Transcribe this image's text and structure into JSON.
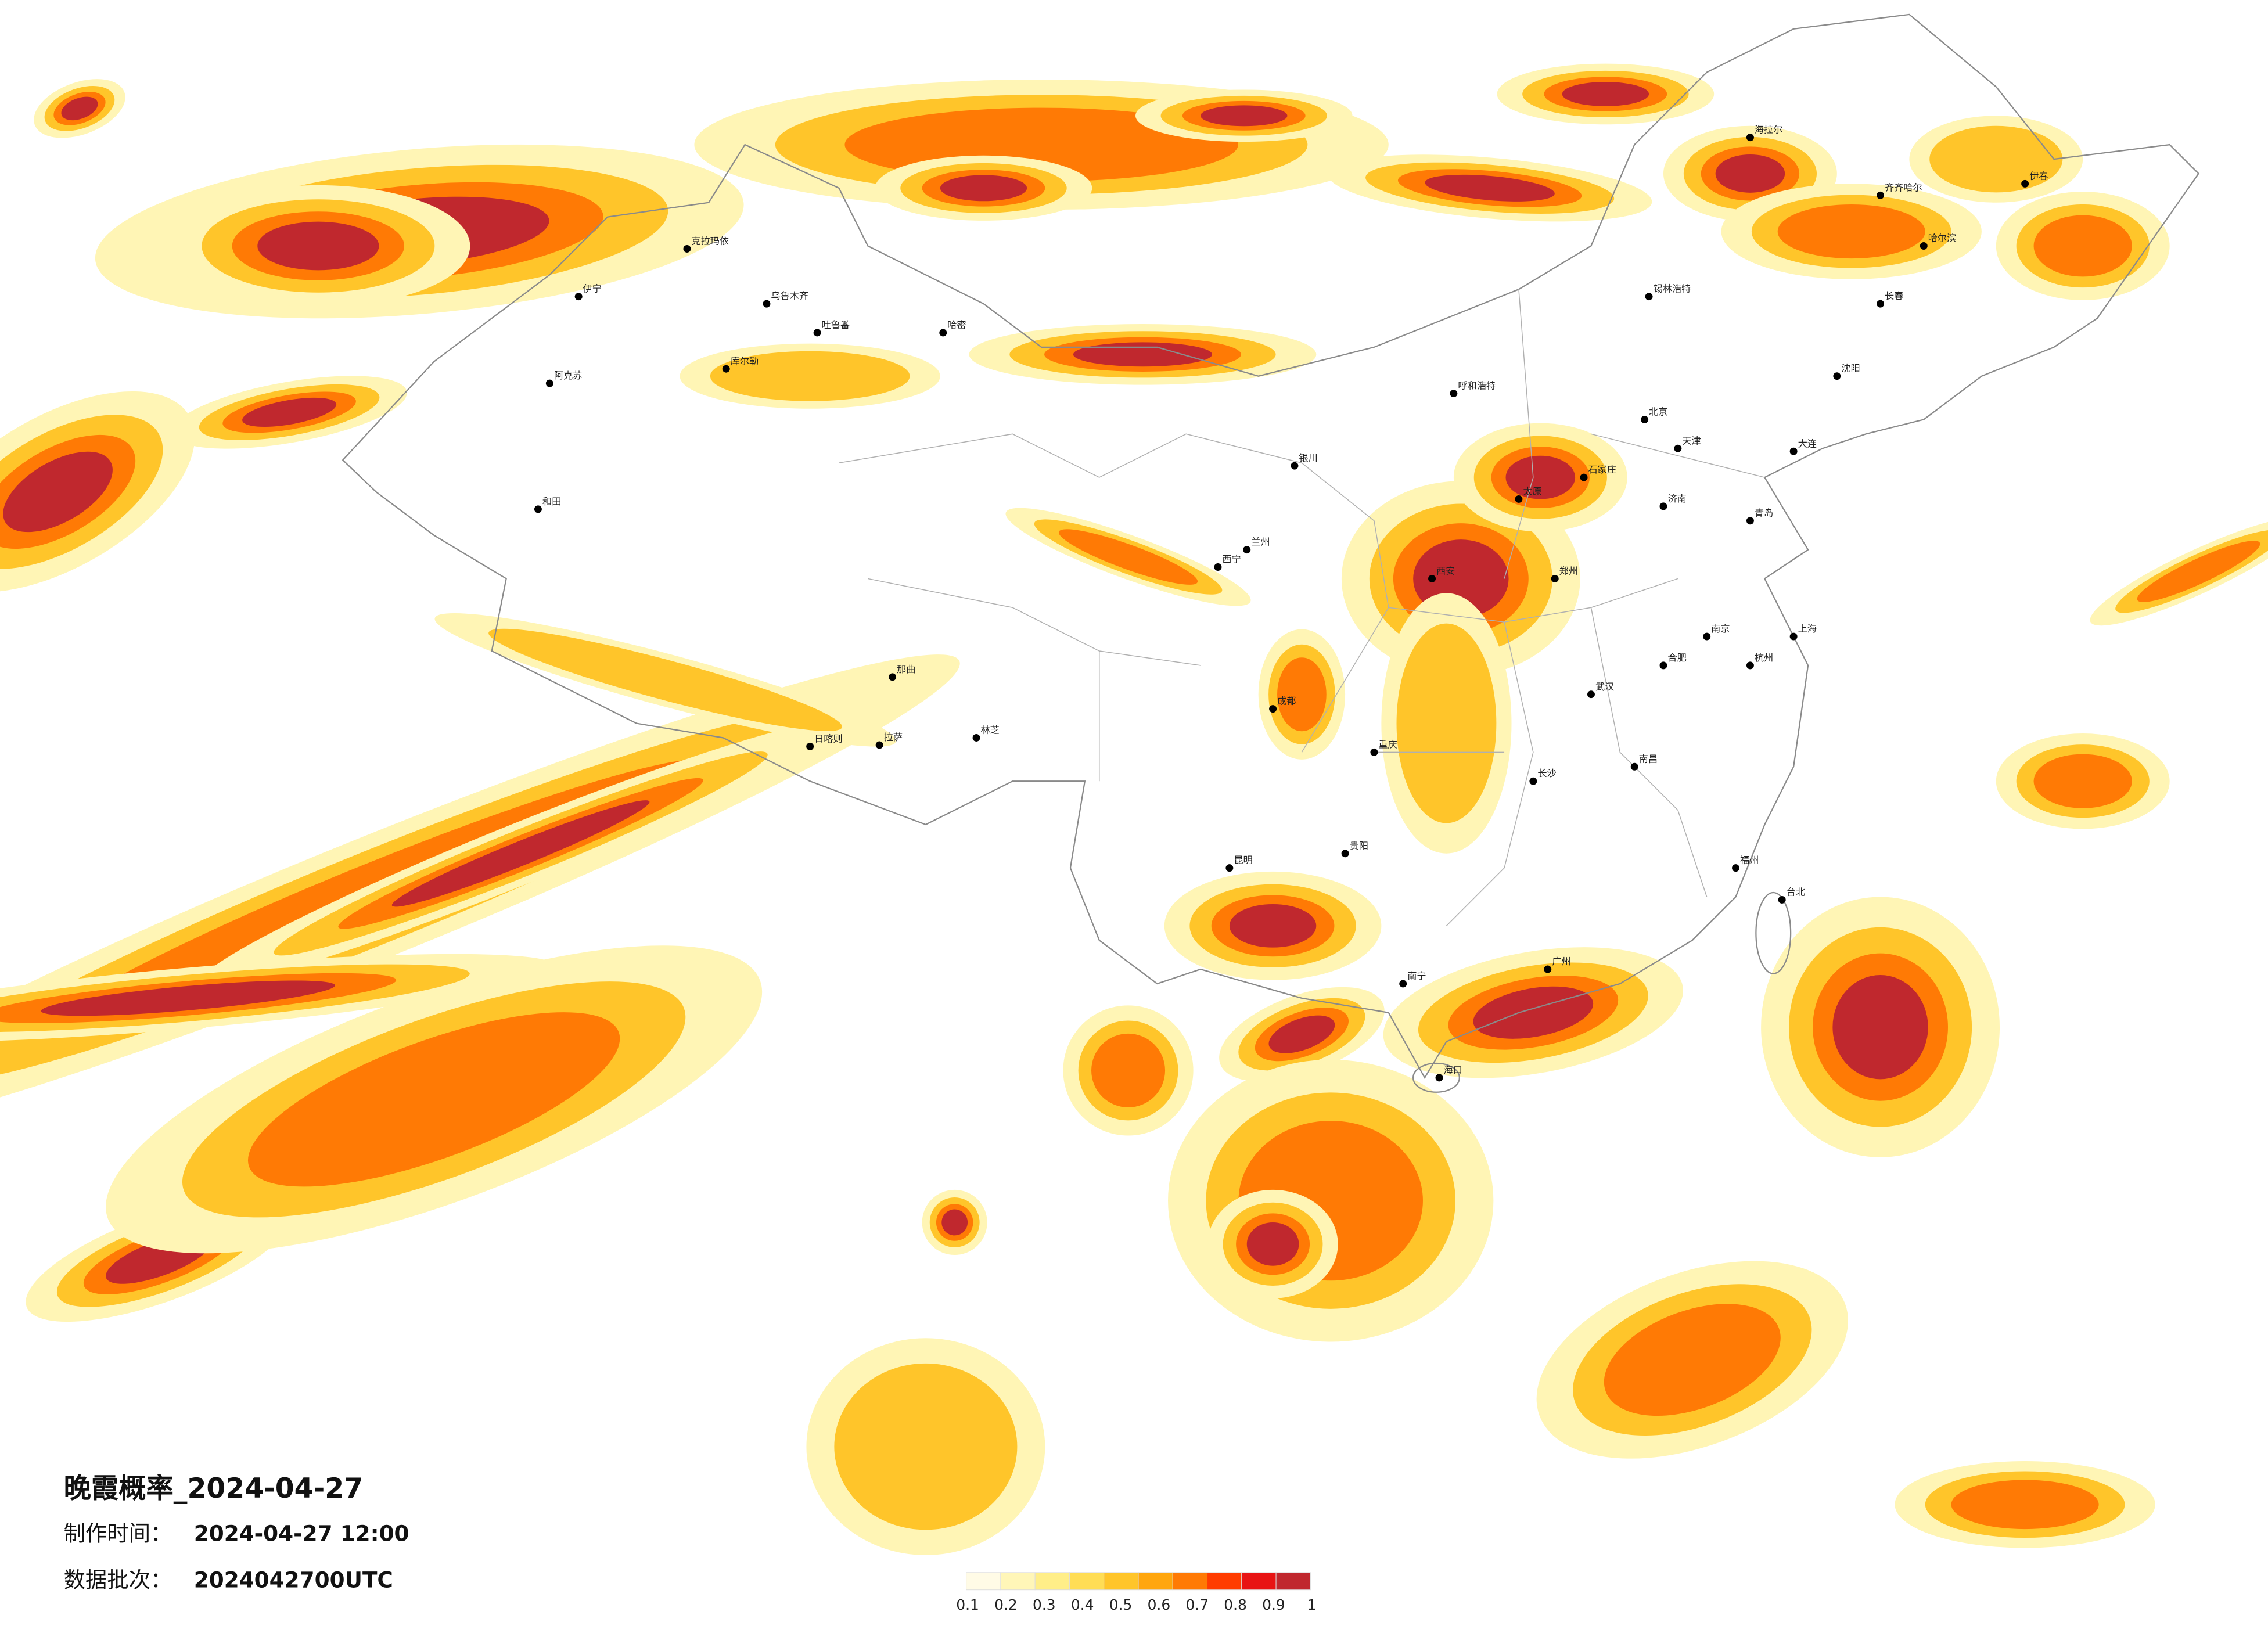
{
  "header": {
    "title": "晚霞概率_2024-04-27",
    "made_label": "制作时间：",
    "made_time": "2024-04-27 12:00",
    "batch_label": "数据批次：",
    "batch": "2024042700UTC"
  },
  "legend": {
    "colors": [
      "#fffbe6",
      "#fff6b8",
      "#ffee88",
      "#ffdd55",
      "#ffc52a",
      "#ffa60e",
      "#ff7a05",
      "#ff3c00",
      "#e81414",
      "#c0282e"
    ],
    "ticks": [
      0.1,
      0.2,
      0.3,
      0.4,
      0.5,
      0.6,
      0.7,
      0.8,
      0.9,
      1
    ]
  },
  "cities": [
    "克拉玛依",
    "乌鲁木齐",
    "伊宁",
    "吐鲁番",
    "哈密",
    "库尔勒",
    "阿克苏",
    "和田",
    "拉萨",
    "日喀则",
    "林芝",
    "那曲",
    "西宁",
    "兰州",
    "银川",
    "呼和浩特",
    "北京",
    "天津",
    "石家庄",
    "太原",
    "郑州",
    "西安",
    "成都",
    "重庆",
    "贵阳",
    "昆明",
    "南宁",
    "广州",
    "长沙",
    "武汉",
    "南昌",
    "福州",
    "杭州",
    "上海",
    "南京",
    "合肥",
    "济南",
    "沈阳",
    "长春",
    "哈尔滨",
    "齐齐哈尔",
    "海拉尔",
    "台北",
    "海口",
    "大连",
    "青岛",
    "锡林浩特",
    "伊春"
  ]
}
